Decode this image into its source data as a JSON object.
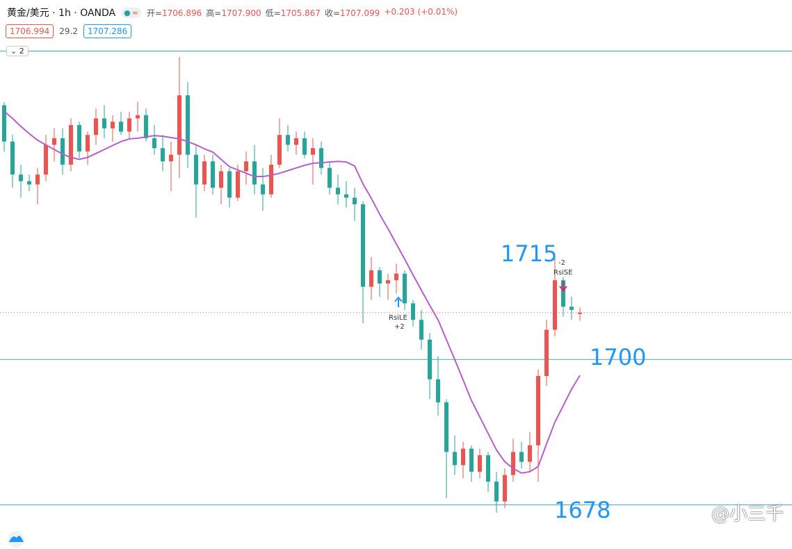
{
  "header": {
    "symbol": "黄金/美元 · 1h · OANDA",
    "ohlc": [
      {
        "label": "开=",
        "value": "1706.896"
      },
      {
        "label": "高=",
        "value": "1707.900"
      },
      {
        "label": "低=",
        "value": "1705.867"
      },
      {
        "label": "收=",
        "value": "1707.099"
      },
      {
        "label": "",
        "value": "+0.203 (+0.01%)"
      }
    ],
    "bid": "1706.994",
    "spread": "29.2",
    "ask": "1707.286",
    "collapse": "2"
  },
  "chart_data": {
    "type": "candlestick",
    "open": [
      1738.5,
      1733,
      1728,
      1727,
      1726.5,
      1728,
      1732.5,
      1733.5,
      1729.5,
      1735.5,
      1731.5,
      1734,
      1736.5,
      1735,
      1736,
      1734.5,
      1736.5,
      1737,
      1733.5,
      1732,
      1730,
      1731,
      1740,
      1731,
      1726.5,
      1730,
      1726,
      1728.5,
      1724.5,
      1728.5,
      1730,
      1726.5,
      1725,
      1729.5,
      1734,
      1732.5,
      1733.5,
      1731,
      1732,
      1729,
      1726,
      1725,
      1724.5,
      1723.5,
      1711,
      1713.5,
      1711.5,
      1712,
      1713,
      1708.5,
      1706,
      1703,
      1697,
      1693.5,
      1686,
      1684,
      1686.5,
      1683,
      1685.5,
      1681.5,
      1678.5,
      1682.5,
      1686,
      1684.5,
      1687,
      1697.5,
      1704.5,
      1712,
      1708,
      1706.896
    ],
    "high": [
      1739,
      1734,
      1729.5,
      1728,
      1729,
      1734,
      1735,
      1735,
      1736.5,
      1736,
      1734.5,
      1738,
      1738.5,
      1737,
      1737.5,
      1737.5,
      1739,
      1738,
      1735.5,
      1734,
      1733,
      1745.8,
      1742,
      1732.5,
      1731,
      1731,
      1729.5,
      1729,
      1729.5,
      1731.5,
      1732.5,
      1729,
      1731,
      1736.5,
      1735.5,
      1734.5,
      1734.5,
      1733.5,
      1733,
      1730,
      1728,
      1727,
      1726,
      1724,
      1715.5,
      1714,
      1713,
      1714.5,
      1713.5,
      1709,
      1707.5,
      1704,
      1700.5,
      1694,
      1688.5,
      1687.5,
      1687,
      1686.5,
      1686,
      1683,
      1683.5,
      1688,
      1687.5,
      1689,
      1698.5,
      1706,
      1715.3,
      1712.5,
      1709.5,
      1707.9
    ],
    "low": [
      1731.5,
      1726,
      1724.5,
      1725.5,
      1723.5,
      1727,
      1730,
      1728,
      1728.5,
      1730.5,
      1729.5,
      1732.5,
      1733.5,
      1733,
      1734,
      1733.5,
      1734.5,
      1733,
      1731,
      1728.5,
      1725.5,
      1727.5,
      1729,
      1721.5,
      1725.5,
      1725,
      1723.5,
      1723,
      1724,
      1726.5,
      1725,
      1722.5,
      1724.5,
      1729,
      1731.5,
      1731,
      1730.5,
      1726.5,
      1728,
      1725,
      1723.5,
      1723,
      1721,
      1705.5,
      1709,
      1709.5,
      1709,
      1710,
      1707.5,
      1705,
      1701.5,
      1694,
      1691.5,
      1679,
      1682.5,
      1682,
      1681.5,
      1682,
      1680,
      1676.8,
      1677.5,
      1681.5,
      1683.5,
      1683,
      1681.5,
      1696,
      1703.5,
      1706.5,
      1706,
      1705.867
    ],
    "close": [
      1733,
      1728,
      1727,
      1726.5,
      1728,
      1732.5,
      1733.5,
      1729.5,
      1735.5,
      1731.5,
      1734,
      1736.5,
      1735,
      1736,
      1734.5,
      1736.5,
      1737,
      1733.5,
      1732,
      1730,
      1731,
      1740,
      1731,
      1726.5,
      1730,
      1726,
      1728.5,
      1724.5,
      1728.5,
      1730,
      1726.5,
      1725,
      1729.5,
      1734,
      1732.5,
      1733.5,
      1731,
      1732,
      1729,
      1726,
      1725,
      1724.5,
      1723.5,
      1711,
      1713.5,
      1711.5,
      1712,
      1713,
      1708.5,
      1706,
      1703,
      1697,
      1693.5,
      1686,
      1684,
      1686.5,
      1683,
      1685.5,
      1681.5,
      1678.5,
      1682.5,
      1686,
      1684.5,
      1687,
      1697.5,
      1704.5,
      1712,
      1708,
      1707.5,
      1707.099
    ],
    "up_color": "#ef5350",
    "down_color": "#26a69a",
    "ma": {
      "color": "#b65fc9",
      "values": [
        1737.6,
        1736.5,
        1735.3,
        1734.2,
        1733.2,
        1732.5,
        1731.8,
        1731.1,
        1730.6,
        1730.3,
        1730.6,
        1731.2,
        1731.8,
        1732.4,
        1733,
        1733.4,
        1733.5,
        1733.7,
        1733.9,
        1733.8,
        1733.6,
        1733.4,
        1733,
        1732.5,
        1731.9,
        1731.4,
        1730.3,
        1729.2,
        1728.7,
        1728.2,
        1727.7,
        1727.7,
        1727.9,
        1728.2,
        1728.6,
        1729,
        1729.4,
        1729.7,
        1729.8,
        1729.9,
        1730,
        1729.9,
        1729.3,
        1726.6,
        1724.4,
        1722,
        1719.8,
        1717.5,
        1715.2,
        1712.8,
        1710.5,
        1708.2,
        1706,
        1703,
        1700,
        1696.9,
        1693.8,
        1691.3,
        1688.8,
        1686.3,
        1684.5,
        1683.5,
        1682.8,
        1683,
        1683.8,
        1687.2,
        1690.5,
        1693,
        1695.5,
        1697.6
      ]
    },
    "ylim": [
      1671.3,
      1747.7
    ],
    "hlines": [
      1746.7,
      1700,
      1678
    ],
    "hline_color": "#3fa7b8",
    "price_line_color": "#ef5350",
    "annotations": [
      "1715",
      "1700",
      "1678"
    ],
    "annotation_color": "#2196f3",
    "signals": [
      {
        "qty": "-2",
        "name": "RsiSE"
      },
      {
        "name": "RsiLE",
        "qty": "+2"
      }
    ]
  },
  "watermark": "@小三千"
}
